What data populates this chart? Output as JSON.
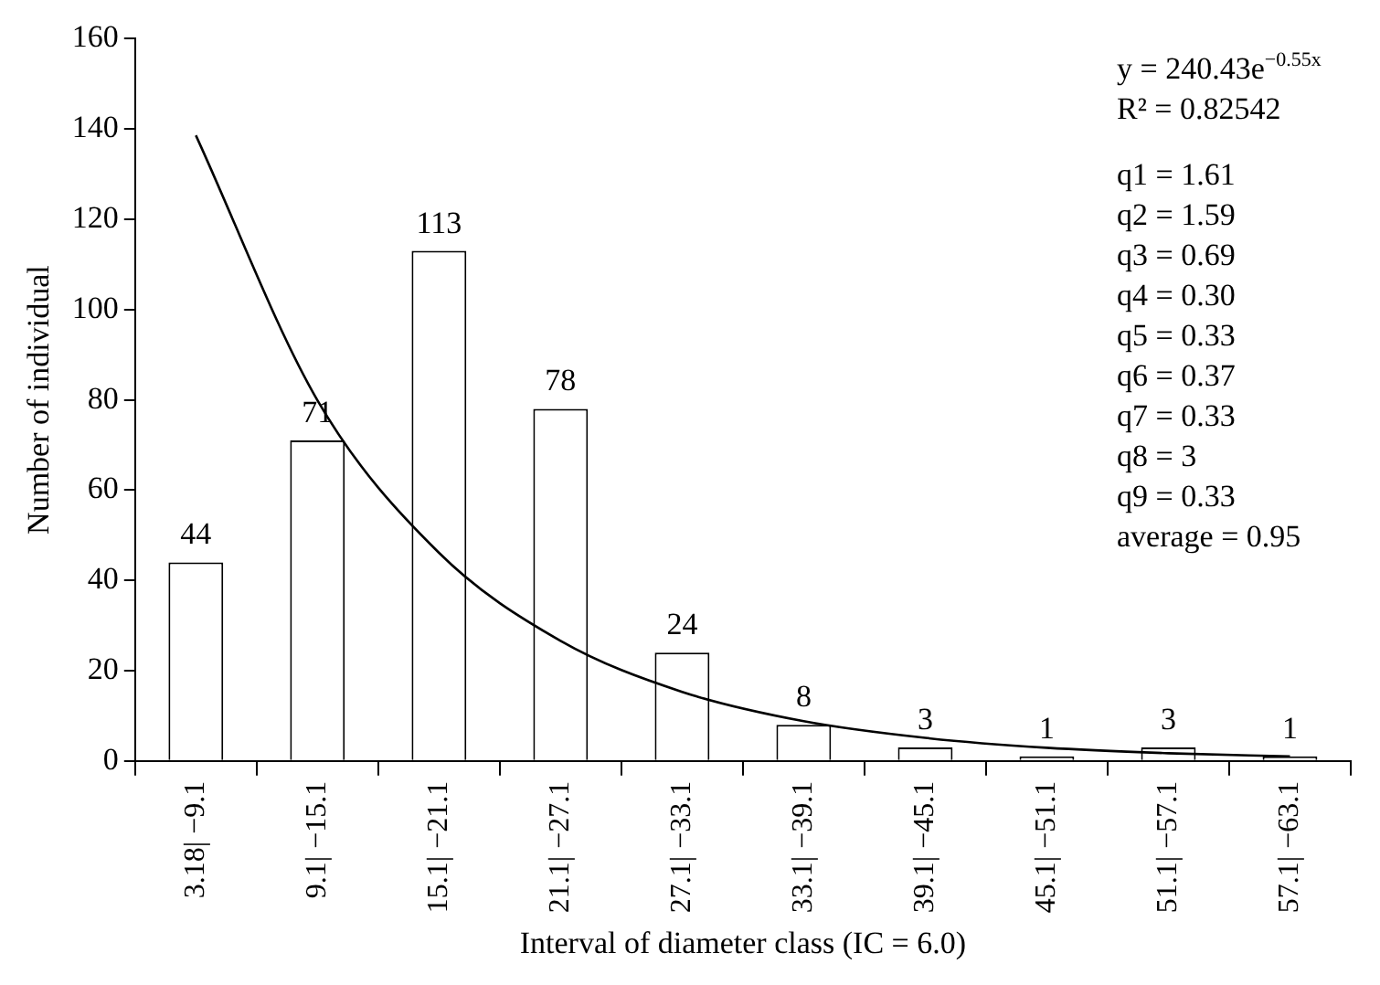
{
  "chart_data": {
    "type": "bar",
    "xlabel": "Interval of diameter class (IC = 6.0)",
    "ylabel": "Number of individual",
    "categories": [
      "3.18| −9.1",
      "9.1| −15.1",
      "15.1| −21.1",
      "21.1| −27.1",
      "27.1| −33.1",
      "33.1| −39.1",
      "39.1| −45.1",
      "45.1| −51.1",
      "51.1| −57.1",
      "57.1| −63.1"
    ],
    "series": [
      {
        "color": "#ffffff",
        "values": [
          44,
          71,
          113,
          78,
          24,
          8,
          3,
          1,
          3,
          1
        ],
        "value_labels": [
          "44",
          "71",
          "113",
          "78",
          "24",
          "8",
          "3",
          "1",
          "3",
          "1"
        ]
      },
      {
        "type": "line",
        "color": "#000000",
        "values": [
          138.6,
          79.9,
          46.1,
          26.6,
          15.3,
          8.8,
          5.1,
          2.9,
          1.7,
          1.0
        ]
      }
    ],
    "ylim": [
      0,
      160
    ],
    "yticks": [
      0,
      20,
      40,
      60,
      80,
      100,
      120,
      140,
      160
    ],
    "grid": false,
    "legend": false,
    "marker": "none",
    "line_style": "solid",
    "annotations": [
      "y = 240.43e$^{−0.55x}$",
      "R² = 0.82542",
      "q1 = 1.61",
      "q2 = 1.59",
      "q3 = 0.69",
      "q4 = 0.30",
      "q5 = 0.33",
      "q6 = 0.37",
      "q7 = 0.33",
      "q8 = 3",
      "q9 = 0.33",
      "average = 0.95"
    ]
  }
}
